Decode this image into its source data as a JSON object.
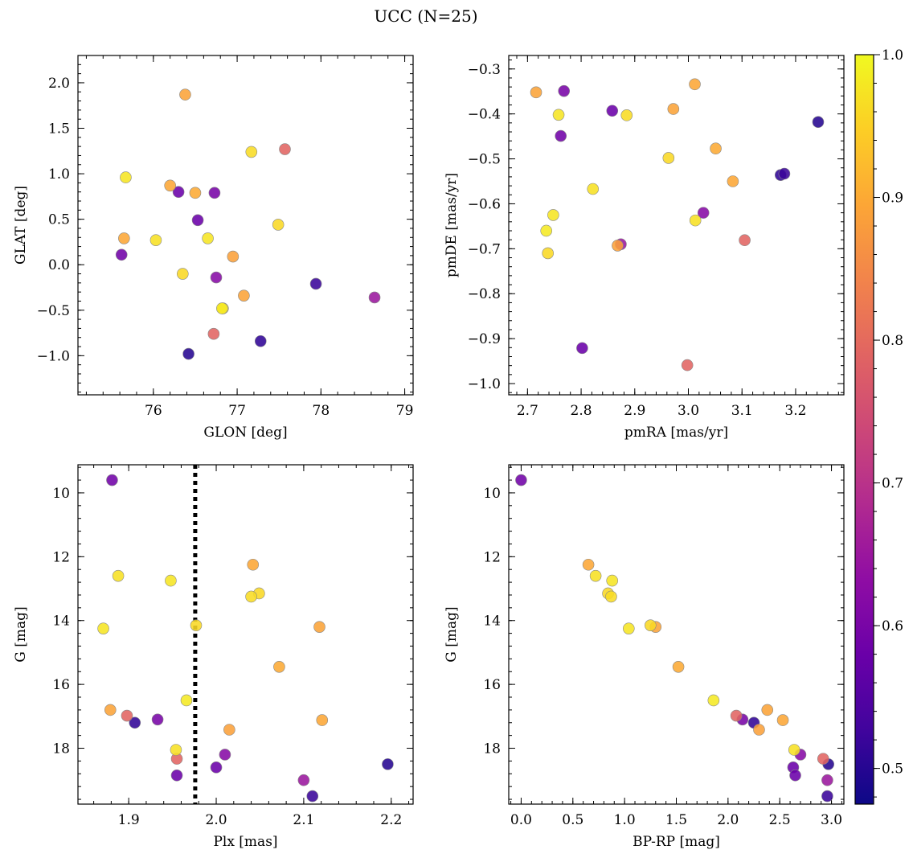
{
  "figure": {
    "title": "UCC (N=25)"
  },
  "chart_data": [
    {
      "type": "scatter",
      "id": "glon-glat",
      "xlabel": "GLON [deg]",
      "ylabel": "GLAT [deg]",
      "xlim": [
        75.1,
        79.1
      ],
      "ylim": [
        -1.43,
        2.3
      ],
      "xticks": [
        76,
        77,
        78,
        79
      ],
      "xtick_labels": [
        "76",
        "77",
        "78",
        "79"
      ],
      "yticks": [
        -1.0,
        -0.5,
        0.0,
        0.5,
        1.0,
        1.5,
        2.0
      ],
      "ytick_labels": [
        "−1.0",
        "−0.5",
        "0.0",
        "0.5",
        "1.0",
        "1.5",
        "2.0"
      ],
      "x_minor_step": 0.2,
      "y_minor_step": 0.1,
      "inverted_y": false,
      "points_ref": "stars",
      "x_field": "glon",
      "y_field": "glat"
    },
    {
      "type": "scatter",
      "id": "pmra-pmde",
      "xlabel": "pmRA [mas/yr]",
      "ylabel": "pmDE [mas/yr]",
      "xlim": [
        2.665,
        3.29
      ],
      "ylim": [
        -1.025,
        -0.27
      ],
      "xticks": [
        2.7,
        2.8,
        2.9,
        3.0,
        3.1,
        3.2
      ],
      "xtick_labels": [
        "2.7",
        "2.8",
        "2.9",
        "3.0",
        "3.1",
        "3.2"
      ],
      "yticks": [
        -1.0,
        -0.9,
        -0.8,
        -0.7,
        -0.6,
        -0.5,
        -0.4,
        -0.3
      ],
      "ytick_labels": [
        "−1.0",
        "−0.9",
        "−0.8",
        "−0.7",
        "−0.6",
        "−0.5",
        "−0.4",
        "−0.3"
      ],
      "x_minor_step": 0.02,
      "y_minor_step": 0.02,
      "inverted_y": false,
      "points_ref": "stars",
      "x_field": "pmra",
      "y_field": "pmde"
    },
    {
      "type": "scatter",
      "id": "plx-g",
      "xlabel": "Plx [mas]",
      "ylabel": "G [mag]",
      "xlim": [
        1.842,
        2.225
      ],
      "ylim": [
        19.75,
        9.12
      ],
      "xticks": [
        1.9,
        2.0,
        2.1,
        2.2
      ],
      "xtick_labels": [
        "1.9",
        "2.0",
        "2.1",
        "2.2"
      ],
      "yticks": [
        10,
        12,
        14,
        16,
        18
      ],
      "ytick_labels": [
        "10",
        "12",
        "14",
        "16",
        "18"
      ],
      "x_minor_step": 0.02,
      "y_minor_step": 0.4,
      "inverted_y": true,
      "vline": 1.976,
      "points_ref": "stars",
      "x_field": "plx",
      "y_field": "g"
    },
    {
      "type": "scatter",
      "id": "bprp-g",
      "xlabel": "BP-RP [mag]",
      "ylabel": "G [mag]",
      "xlim": [
        -0.12,
        3.12
      ],
      "ylim": [
        19.75,
        9.12
      ],
      "xticks": [
        0.0,
        0.5,
        1.0,
        1.5,
        2.0,
        2.5,
        3.0
      ],
      "xtick_labels": [
        "0.0",
        "0.5",
        "1.0",
        "1.5",
        "2.0",
        "2.5",
        "3.0"
      ],
      "yticks": [
        10,
        12,
        14,
        16,
        18
      ],
      "ytick_labels": [
        "10",
        "12",
        "14",
        "16",
        "18"
      ],
      "x_minor_step": 0.1,
      "y_minor_step": 0.4,
      "inverted_y": true,
      "points_ref": "stars",
      "x_field": "bprp",
      "y_field": "g"
    }
  ],
  "colorbar": {
    "min": 0.475,
    "max": 1.0,
    "ticks": [
      0.5,
      0.6,
      0.7,
      0.8,
      0.9,
      1.0
    ],
    "tick_labels": [
      "0.5",
      "0.6",
      "0.7",
      "0.8",
      "0.9",
      "1.0"
    ],
    "minor_step": 0.02,
    "colormap": "plasma"
  },
  "stars": [
    {
      "glon": 76.38,
      "glat": 1.87,
      "pmra": 2.716,
      "pmde": -0.352,
      "plx": 1.879,
      "g": 16.8,
      "bprp": 2.38,
      "prob": 0.89
    },
    {
      "glon": 75.67,
      "glat": 0.96,
      "pmra": 2.758,
      "pmde": -0.402,
      "plx": 1.871,
      "g": 14.25,
      "bprp": 1.04,
      "prob": 0.975
    },
    {
      "glon": 76.2,
      "glat": 0.87,
      "pmra": 3.012,
      "pmde": -0.334,
      "plx": 2.042,
      "g": 12.25,
      "bprp": 0.65,
      "prob": 0.895
    },
    {
      "glon": 76.5,
      "glat": 0.79,
      "pmra": 3.051,
      "pmde": -0.477,
      "plx": 2.072,
      "g": 15.45,
      "bprp": 1.52,
      "prob": 0.9
    },
    {
      "glon": 75.65,
      "glat": 0.29,
      "pmra": 3.083,
      "pmde": -0.55,
      "plx": 2.121,
      "g": 17.12,
      "bprp": 2.53,
      "prob": 0.895
    },
    {
      "glon": 76.95,
      "glat": 0.09,
      "pmra": 2.868,
      "pmde": -0.693,
      "plx": 2.015,
      "g": 17.42,
      "bprp": 2.3,
      "prob": 0.885
    },
    {
      "glon": 77.08,
      "glat": -0.34,
      "pmra": 2.972,
      "pmde": -0.389,
      "plx": 2.118,
      "g": 14.2,
      "bprp": 1.3,
      "prob": 0.89
    },
    {
      "glon": 77.57,
      "glat": 1.27,
      "pmra": 3.105,
      "pmde": -0.681,
      "plx": 1.898,
      "g": 16.98,
      "bprp": 2.08,
      "prob": 0.79
    },
    {
      "glon": 76.72,
      "glat": -0.76,
      "pmra": 2.998,
      "pmde": -0.959,
      "plx": 1.955,
      "g": 18.33,
      "bprp": 2.92,
      "prob": 0.79
    },
    {
      "glon": 77.17,
      "glat": 1.24,
      "pmra": 2.885,
      "pmde": -0.403,
      "plx": 2.04,
      "g": 13.25,
      "bprp": 0.87,
      "prob": 0.965
    },
    {
      "glon": 77.49,
      "glat": 0.44,
      "pmra": 2.963,
      "pmde": -0.498,
      "plx": 2.049,
      "g": 13.15,
      "bprp": 0.84,
      "prob": 0.96
    },
    {
      "glon": 76.03,
      "glat": 0.27,
      "pmra": 2.822,
      "pmde": -0.567,
      "plx": 1.888,
      "g": 12.6,
      "bprp": 0.72,
      "prob": 0.97
    },
    {
      "glon": 76.65,
      "glat": 0.29,
      "pmra": 2.748,
      "pmde": -0.625,
      "plx": 1.948,
      "g": 12.75,
      "bprp": 0.88,
      "prob": 0.975
    },
    {
      "glon": 76.82,
      "glat": -0.48,
      "pmra": 2.735,
      "pmde": -0.66,
      "plx": 1.966,
      "g": 16.5,
      "bprp": 1.86,
      "prob": 0.98
    },
    {
      "glon": 76.35,
      "glat": -0.1,
      "pmra": 2.738,
      "pmde": -0.71,
      "plx": 1.977,
      "g": 14.15,
      "bprp": 1.25,
      "prob": 0.96
    },
    {
      "glon": 76.83,
      "glat": -0.48,
      "pmra": 3.013,
      "pmde": -0.637,
      "plx": 1.954,
      "g": 18.05,
      "bprp": 2.64,
      "prob": 0.97
    },
    {
      "glon": 76.73,
      "glat": 0.79,
      "pmra": 2.768,
      "pmde": -0.349,
      "plx": 1.933,
      "g": 17.1,
      "bprp": 2.14,
      "prob": 0.6
    },
    {
      "glon": 75.62,
      "glat": 0.11,
      "pmra": 2.762,
      "pmde": -0.449,
      "plx": 1.881,
      "g": 9.6,
      "bprp": 0.0,
      "prob": 0.59
    },
    {
      "glon": 76.53,
      "glat": 0.49,
      "pmra": 2.858,
      "pmde": -0.393,
      "plx": 2.0,
      "g": 18.6,
      "bprp": 2.63,
      "prob": 0.58
    },
    {
      "glon": 76.75,
      "glat": -0.14,
      "pmra": 3.028,
      "pmde": -0.62,
      "plx": 2.01,
      "g": 18.2,
      "bprp": 2.7,
      "prob": 0.62
    },
    {
      "glon": 78.64,
      "glat": -0.36,
      "pmra": 2.874,
      "pmde": -0.69,
      "plx": 2.1,
      "g": 19.0,
      "bprp": 2.96,
      "prob": 0.65
    },
    {
      "glon": 77.94,
      "glat": -0.21,
      "pmra": 3.179,
      "pmde": -0.533,
      "plx": 2.11,
      "g": 19.5,
      "bprp": 2.96,
      "prob": 0.52
    },
    {
      "glon": 77.28,
      "glat": -0.84,
      "pmra": 3.172,
      "pmde": -0.536,
      "plx": 1.907,
      "g": 17.2,
      "bprp": 2.25,
      "prob": 0.51
    },
    {
      "glon": 76.42,
      "glat": -0.98,
      "pmra": 3.242,
      "pmde": -0.418,
      "plx": 2.196,
      "g": 18.5,
      "bprp": 2.97,
      "prob": 0.5
    },
    {
      "glon": 76.3,
      "glat": 0.8,
      "pmra": 2.802,
      "pmde": -0.921,
      "plx": 1.955,
      "g": 18.85,
      "bprp": 2.65,
      "prob": 0.58
    }
  ]
}
